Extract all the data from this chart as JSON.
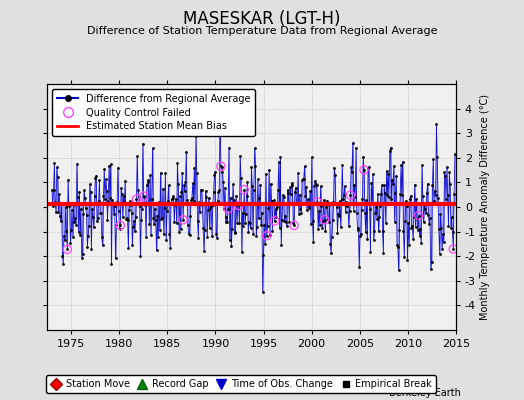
{
  "title": "MASESKAR (LGT-H)",
  "subtitle": "Difference of Station Temperature Data from Regional Average",
  "ylabel": "Monthly Temperature Anomaly Difference (°C)",
  "xlabel_ticks": [
    1975,
    1980,
    1985,
    1990,
    1995,
    2000,
    2005,
    2010,
    2015
  ],
  "ylim": [
    -5,
    5
  ],
  "xlim": [
    1972.5,
    2015.0
  ],
  "mean_bias": 0.12,
  "background_color": "#e0e0e0",
  "plot_bg_color": "#f0f0f0",
  "line_color": "#7777ff",
  "line_color_dark": "#0000cc",
  "dot_color": "#000000",
  "bias_color": "#ff0000",
  "qc_color": "#ff44ff",
  "footer": "Berkeley Earth",
  "seed": 42,
  "start_year": 1973.0,
  "end_year": 2014.9
}
